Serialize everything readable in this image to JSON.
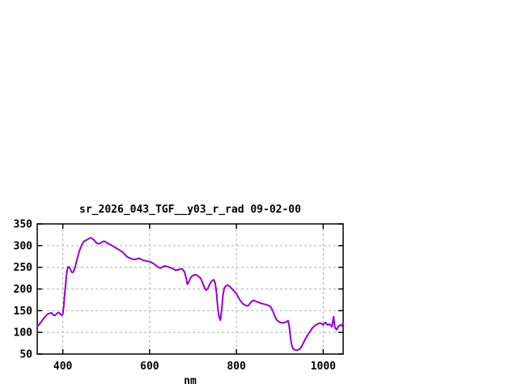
{
  "page": {
    "background": "#ffffff"
  },
  "chart_data": {
    "type": "line",
    "title": "sr_2026_043_TGF__y03_r_rad 09-02-00",
    "xlabel": "nm",
    "ylabel": "",
    "xlim": [
      341,
      1046
    ],
    "ylim": [
      50,
      350
    ],
    "x_ticks": [
      400,
      600,
      800,
      1000
    ],
    "y_ticks": [
      50,
      100,
      150,
      200,
      250,
      300,
      350
    ],
    "grid": true,
    "legend_position": "none",
    "colors": {
      "line": "#9400d3",
      "grid": "#b0b0b0",
      "axis": "#000000",
      "text": "#000000",
      "background": "#ffffff"
    },
    "series": [
      {
        "name": "sr_2026_043_TGF__y03_r_rad",
        "color": "#9400d3",
        "x": [
          341,
          345,
          350,
          355,
          360,
          365,
          370,
          374,
          378,
          382,
          386,
          390,
          394,
          397,
          400,
          402,
          404,
          406,
          408,
          410,
          412,
          415,
          418,
          421,
          424,
          427,
          430,
          433,
          436,
          439,
          442,
          445,
          448,
          451,
          454,
          457,
          460,
          463,
          466,
          469,
          472,
          475,
          478,
          482,
          486,
          490,
          494,
          498,
          502,
          506,
          510,
          515,
          520,
          525,
          530,
          535,
          540,
          545,
          550,
          555,
          560,
          565,
          570,
          575,
          580,
          585,
          590,
          595,
          600,
          605,
          610,
          615,
          620,
          625,
          630,
          635,
          640,
          645,
          650,
          655,
          660,
          665,
          670,
          675,
          680,
          684,
          687,
          690,
          694,
          698,
          702,
          706,
          710,
          714,
          718,
          722,
          726,
          730,
          734,
          738,
          742,
          745,
          748,
          751,
          754,
          757,
          760,
          763,
          766,
          769,
          772,
          776,
          780,
          784,
          788,
          792,
          796,
          800,
          804,
          808,
          812,
          816,
          820,
          824,
          828,
          832,
          836,
          840,
          844,
          848,
          852,
          856,
          860,
          864,
          868,
          872,
          876,
          880,
          884,
          888,
          892,
          896,
          900,
          904,
          908,
          912,
          916,
          919,
          922,
          925,
          928,
          931,
          934,
          937,
          940,
          943,
          946,
          949,
          952,
          955,
          959,
          963,
          967,
          971,
          975,
          979,
          983,
          987,
          991,
          995,
          1000,
          1005,
          1010,
          1015,
          1020,
          1024,
          1027,
          1031,
          1035,
          1040,
          1043,
          1046
        ],
        "values": [
          114,
          117,
          124,
          131,
          137,
          142,
          144,
          145,
          140,
          139,
          143,
          146,
          143,
          139,
          141,
          160,
          185,
          207,
          228,
          243,
          251,
          250,
          244,
          238,
          239,
          246,
          257,
          269,
          280,
          290,
          298,
          304,
          309,
          311,
          313,
          314,
          316,
          318,
          317,
          315,
          313,
          309,
          306,
          304,
          305,
          308,
          310,
          309,
          306,
          304,
          302,
          299,
          296,
          293,
          290,
          287,
          283,
          277,
          273,
          271,
          269,
          268,
          269,
          271,
          269,
          266,
          265,
          264,
          263,
          261,
          258,
          254,
          250,
          248,
          251,
          253,
          252,
          250,
          248,
          246,
          243,
          244,
          246,
          246,
          240,
          226,
          211,
          215,
          225,
          230,
          232,
          233,
          231,
          228,
          224,
          214,
          204,
          197,
          201,
          210,
          217,
          220,
          221,
          214,
          193,
          158,
          135,
          128,
          152,
          186,
          202,
          207,
          209,
          206,
          202,
          198,
          194,
          189,
          182,
          175,
          169,
          165,
          163,
          161,
          162,
          168,
          172,
          174,
          172,
          170,
          169,
          167,
          166,
          165,
          164,
          163,
          161,
          157,
          149,
          139,
          130,
          126,
          123,
          122,
          122,
          123,
          125,
          127,
          113,
          85,
          68,
          62,
          60,
          59,
          59,
          60,
          62,
          65,
          71,
          77,
          85,
          92,
          98,
          104,
          110,
          114,
          117,
          119,
          121,
          121,
          117,
          123,
          117,
          119,
          113,
          136,
          111,
          106,
          114,
          117,
          115,
          123
        ]
      }
    ]
  }
}
